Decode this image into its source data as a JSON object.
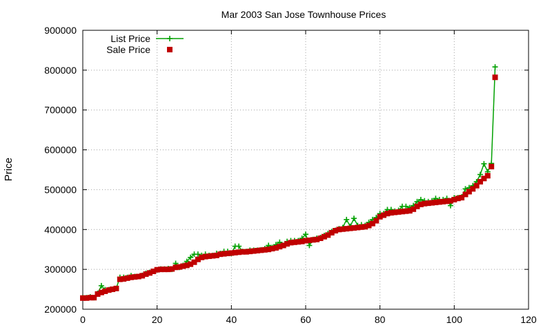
{
  "chart_data": {
    "type": "line",
    "title": "Mar 2003 San Jose Townhouse Prices",
    "xlabel": "",
    "ylabel": "Price",
    "xlim": [
      0,
      120
    ],
    "ylim": [
      200000,
      900000
    ],
    "xticks": [
      0,
      20,
      40,
      60,
      80,
      100,
      120
    ],
    "yticks": [
      200000,
      300000,
      400000,
      500000,
      600000,
      700000,
      800000,
      900000
    ],
    "xtick_labels": [
      "0",
      "20",
      "40",
      "60",
      "80",
      "100",
      "120"
    ],
    "ytick_labels": [
      "200000",
      "300000",
      "400000",
      "500000",
      "600000",
      "700000",
      "800000",
      "900000"
    ],
    "grid": true,
    "legend_position": "top-left",
    "series": [
      {
        "name": "List Price",
        "style": "linespoints",
        "marker": "plus",
        "color": "#00a000",
        "x": [
          0,
          1,
          2,
          3,
          4,
          5,
          6,
          7,
          8,
          9,
          10,
          11,
          12,
          13,
          14,
          15,
          16,
          17,
          18,
          19,
          20,
          21,
          22,
          23,
          24,
          25,
          26,
          27,
          28,
          29,
          30,
          31,
          32,
          33,
          34,
          35,
          36,
          37,
          38,
          39,
          40,
          41,
          42,
          43,
          44,
          45,
          46,
          47,
          48,
          49,
          50,
          51,
          52,
          53,
          54,
          55,
          56,
          57,
          58,
          59,
          60,
          61,
          62,
          63,
          64,
          65,
          66,
          67,
          68,
          69,
          70,
          71,
          72,
          73,
          74,
          75,
          76,
          77,
          78,
          79,
          80,
          81,
          82,
          83,
          84,
          85,
          86,
          87,
          88,
          89,
          90,
          91,
          92,
          93,
          94,
          95,
          96,
          97,
          98,
          99,
          100,
          101,
          102,
          103,
          104,
          105,
          106,
          107,
          108,
          109,
          110,
          111
        ],
        "values": [
          229000,
          229000,
          231000,
          229000,
          240000,
          259000,
          249000,
          249000,
          250000,
          252000,
          280000,
          280000,
          280000,
          284000,
          282000,
          282000,
          285000,
          290000,
          292000,
          295000,
          299000,
          301000,
          301000,
          302000,
          300000,
          315000,
          305000,
          310000,
          320000,
          330000,
          338000,
          338000,
          335000,
          338000,
          335000,
          335000,
          340000,
          340000,
          345000,
          345000,
          340000,
          358000,
          358000,
          345000,
          345000,
          348000,
          348000,
          348000,
          349000,
          352000,
          360000,
          355000,
          362000,
          368000,
          360000,
          370000,
          372000,
          372000,
          372000,
          378000,
          388000,
          360000,
          375000,
          378000,
          380000,
          385000,
          390000,
          395000,
          398000,
          402000,
          405000,
          425000,
          408000,
          428000,
          410000,
          412000,
          410000,
          418000,
          425000,
          430000,
          440000,
          440000,
          450000,
          450000,
          446000,
          448000,
          458000,
          458000,
          455000,
          460000,
          470000,
          475000,
          472000,
          470000,
          472000,
          478000,
          475000,
          475000,
          478000,
          460000,
          480000,
          480000,
          482000,
          502000,
          505000,
          510000,
          520000,
          538000,
          565000,
          545000,
          566000,
          808000
        ]
      },
      {
        "name": "Sale Price",
        "style": "points",
        "marker": "square",
        "color": "#c00000",
        "x": [
          0,
          1,
          2,
          3,
          4,
          5,
          6,
          7,
          8,
          9,
          10,
          11,
          12,
          13,
          14,
          15,
          16,
          17,
          18,
          19,
          20,
          21,
          22,
          23,
          24,
          25,
          26,
          27,
          28,
          29,
          30,
          31,
          32,
          33,
          34,
          35,
          36,
          37,
          38,
          39,
          40,
          41,
          42,
          43,
          44,
          45,
          46,
          47,
          48,
          49,
          50,
          51,
          52,
          53,
          54,
          55,
          56,
          57,
          58,
          59,
          60,
          61,
          62,
          63,
          64,
          65,
          66,
          67,
          68,
          69,
          70,
          71,
          72,
          73,
          74,
          75,
          76,
          77,
          78,
          79,
          80,
          81,
          82,
          83,
          84,
          85,
          86,
          87,
          88,
          89,
          90,
          91,
          92,
          93,
          94,
          95,
          96,
          97,
          98,
          99,
          100,
          101,
          102,
          103,
          104,
          105,
          106,
          107,
          108,
          109,
          110,
          111
        ],
        "values": [
          228000,
          228000,
          229000,
          229000,
          238000,
          242000,
          245000,
          248000,
          250000,
          252000,
          275000,
          276000,
          278000,
          280000,
          281000,
          282000,
          284000,
          288000,
          291000,
          295000,
          299000,
          300000,
          300000,
          300000,
          301000,
          305000,
          306000,
          308000,
          310000,
          313000,
          318000,
          325000,
          330000,
          332000,
          333000,
          334000,
          335000,
          338000,
          339000,
          340000,
          341000,
          342000,
          343000,
          344000,
          344000,
          345000,
          346000,
          347000,
          348000,
          349000,
          350000,
          352000,
          354000,
          357000,
          360000,
          364000,
          367000,
          368000,
          369000,
          370000,
          372000,
          373000,
          374000,
          375000,
          378000,
          382000,
          386000,
          392000,
          397000,
          400000,
          401000,
          402000,
          403000,
          404000,
          405000,
          406000,
          407000,
          410000,
          415000,
          422000,
          432000,
          436000,
          440000,
          442000,
          443000,
          444000,
          445000,
          446000,
          447000,
          451000,
          458000,
          463000,
          465000,
          466000,
          467000,
          468000,
          469000,
          470000,
          471000,
          472000,
          475000,
          478000,
          480000,
          488000,
          495000,
          502000,
          510000,
          520000,
          528000,
          535000,
          558000,
          782000
        ]
      }
    ]
  }
}
